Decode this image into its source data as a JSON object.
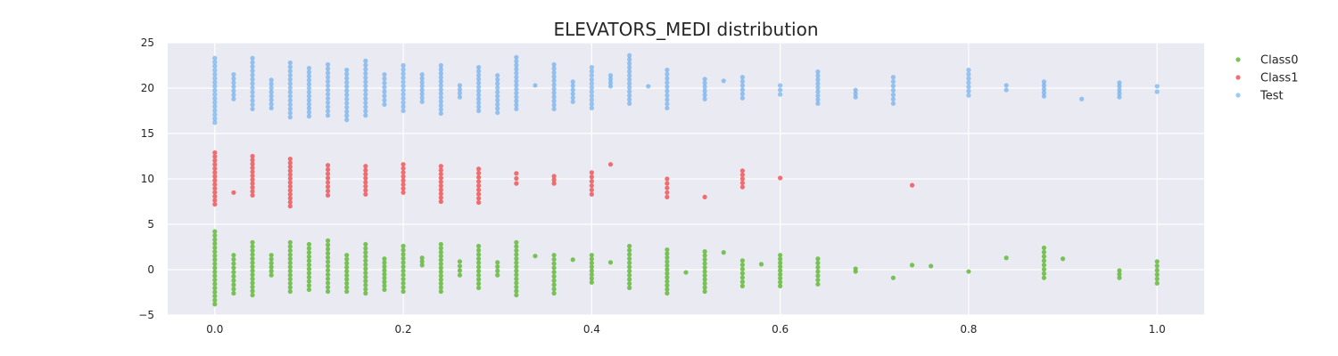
{
  "chart_data": {
    "type": "scatter",
    "title": "ELEVATORS_MEDI distribution",
    "xlabel": "",
    "ylabel": "",
    "xlim": [
      -0.05,
      1.05
    ],
    "ylim": [
      -5,
      25
    ],
    "x_ticks": [
      "0.0",
      "0.2",
      "0.4",
      "0.6",
      "0.8",
      "1.0"
    ],
    "y_ticks": [
      "−5",
      "0",
      "5",
      "10",
      "15",
      "20",
      "25"
    ],
    "grid": true,
    "legend_position": "right",
    "series": [
      {
        "name": "Class0",
        "color": "#6cbd45",
        "x_values": [
          0.0,
          0.02,
          0.04,
          0.06,
          0.08,
          0.1,
          0.12,
          0.14,
          0.16,
          0.18,
          0.2,
          0.22,
          0.24,
          0.26,
          0.28,
          0.3,
          0.32,
          0.34,
          0.36,
          0.38,
          0.4,
          0.42,
          0.44,
          0.48,
          0.5,
          0.52,
          0.54,
          0.56,
          0.58,
          0.6,
          0.64,
          0.68,
          0.72,
          0.74,
          0.76,
          0.8,
          0.84,
          0.88,
          0.9,
          0.96,
          1.0
        ],
        "y_ranges": [
          [
            -3.8,
            4.2
          ],
          [
            -2.6,
            1.6
          ],
          [
            -2.8,
            3.0
          ],
          [
            -0.6,
            1.6
          ],
          [
            -2.4,
            3.0
          ],
          [
            -2.2,
            2.8
          ],
          [
            -2.4,
            3.2
          ],
          [
            -2.4,
            1.6
          ],
          [
            -2.6,
            2.8
          ],
          [
            -2.2,
            1.2
          ],
          [
            -2.4,
            2.6
          ],
          [
            0.5,
            1.3
          ],
          [
            -2.4,
            2.8
          ],
          [
            -0.6,
            0.9
          ],
          [
            -2.0,
            2.6
          ],
          [
            -0.6,
            0.8
          ],
          [
            -2.8,
            3.0
          ],
          [
            1.5,
            1.5
          ],
          [
            -2.6,
            1.6
          ],
          [
            1.1,
            1.1
          ],
          [
            -1.4,
            1.6
          ],
          [
            0.8,
            0.8
          ],
          [
            -2.0,
            2.6
          ],
          [
            -2.6,
            2.2
          ],
          [
            -0.3,
            -0.3
          ],
          [
            -2.4,
            2.0
          ],
          [
            1.9,
            1.9
          ],
          [
            -1.8,
            1.0
          ],
          [
            0.6,
            0.6
          ],
          [
            -1.8,
            1.6
          ],
          [
            -1.6,
            1.2
          ],
          [
            -0.2,
            0.1
          ],
          [
            -0.9,
            -0.9
          ],
          [
            0.5,
            0.5
          ],
          [
            0.4,
            0.4
          ],
          [
            -0.2,
            -0.2
          ],
          [
            1.3,
            1.3
          ],
          [
            -0.9,
            2.4
          ],
          [
            1.2,
            1.2
          ],
          [
            -0.9,
            -0.1
          ],
          [
            -1.5,
            0.9
          ]
        ]
      },
      {
        "name": "Class1",
        "color": "#ef5f62",
        "x_values": [
          0.0,
          0.02,
          0.04,
          0.08,
          0.12,
          0.16,
          0.2,
          0.24,
          0.28,
          0.32,
          0.36,
          0.4,
          0.42,
          0.48,
          0.52,
          0.56,
          0.6,
          0.74
        ],
        "y_ranges": [
          [
            7.2,
            12.9
          ],
          [
            8.5,
            8.5
          ],
          [
            8.2,
            12.5
          ],
          [
            7.0,
            12.2
          ],
          [
            8.2,
            11.5
          ],
          [
            8.3,
            11.4
          ],
          [
            8.5,
            11.6
          ],
          [
            7.5,
            11.4
          ],
          [
            7.4,
            11.1
          ],
          [
            9.5,
            10.6
          ],
          [
            9.5,
            10.3
          ],
          [
            8.3,
            10.7
          ],
          [
            11.6,
            11.6
          ],
          [
            8.0,
            10.0
          ],
          [
            8.0,
            8.0
          ],
          [
            9.1,
            10.9
          ],
          [
            10.1,
            10.1
          ],
          [
            9.3,
            9.3
          ]
        ]
      },
      {
        "name": "Test",
        "color": "#4a9ded",
        "x_values": [
          0.0,
          0.02,
          0.04,
          0.06,
          0.08,
          0.1,
          0.12,
          0.14,
          0.16,
          0.18,
          0.2,
          0.22,
          0.24,
          0.26,
          0.28,
          0.3,
          0.32,
          0.34,
          0.36,
          0.38,
          0.4,
          0.42,
          0.44,
          0.46,
          0.48,
          0.52,
          0.54,
          0.56,
          0.6,
          0.64,
          0.68,
          0.72,
          0.8,
          0.84,
          0.88,
          0.92,
          0.96,
          1.0
        ],
        "y_ranges": [
          [
            16.2,
            23.3
          ],
          [
            18.8,
            21.5
          ],
          [
            17.7,
            23.3
          ],
          [
            17.8,
            20.9
          ],
          [
            16.8,
            22.8
          ],
          [
            16.9,
            22.2
          ],
          [
            17.0,
            22.6
          ],
          [
            16.5,
            22.0
          ],
          [
            17.0,
            23.0
          ],
          [
            18.2,
            21.5
          ],
          [
            17.5,
            22.5
          ],
          [
            18.5,
            21.5
          ],
          [
            17.2,
            22.5
          ],
          [
            19.0,
            20.3
          ],
          [
            17.5,
            22.3
          ],
          [
            17.3,
            21.4
          ],
          [
            17.7,
            23.4
          ],
          [
            20.3,
            20.3
          ],
          [
            17.7,
            22.6
          ],
          [
            18.5,
            20.7
          ],
          [
            17.8,
            22.3
          ],
          [
            20.2,
            21.4
          ],
          [
            18.3,
            23.6
          ],
          [
            20.2,
            20.2
          ],
          [
            17.8,
            22.0
          ],
          [
            18.8,
            21.0
          ],
          [
            20.8,
            20.8
          ],
          [
            18.9,
            21.2
          ],
          [
            19.3,
            20.3
          ],
          [
            18.3,
            21.8
          ],
          [
            19.0,
            19.8
          ],
          [
            18.3,
            21.2
          ],
          [
            19.2,
            22.0
          ],
          [
            19.8,
            20.3
          ],
          [
            19.1,
            20.7
          ],
          [
            18.8,
            18.8
          ],
          [
            19.0,
            20.6
          ],
          [
            19.6,
            20.2
          ]
        ]
      }
    ]
  }
}
